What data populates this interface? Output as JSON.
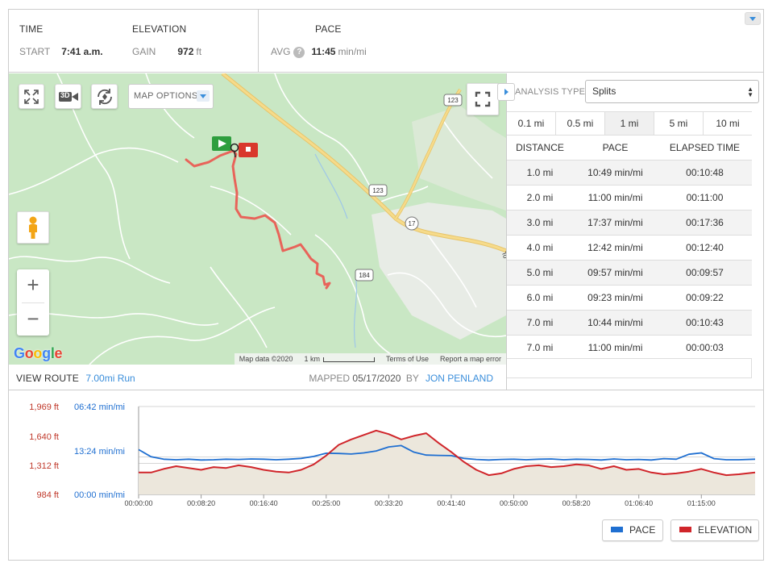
{
  "stats": {
    "time": {
      "heading": "TIME",
      "label": "START",
      "value": "7:41 a.m."
    },
    "elevation": {
      "heading": "ELEVATION",
      "label": "GAIN",
      "value": "972",
      "unit": "ft"
    },
    "pace": {
      "heading": "PACE",
      "label": "AVG",
      "help": "?",
      "value": "11:45",
      "unit": "min/mi"
    }
  },
  "map": {
    "buttons": {
      "expand": "expand-icon",
      "view_3d": "3D",
      "rotate": "rotate-icon",
      "fullscreen": "fullscreen-icon"
    },
    "options_label": "MAP OPTIONS",
    "zoom_in": "+",
    "zoom_out": "−",
    "google": "Google",
    "road_labels": [
      "123",
      "123",
      "17",
      "184",
      "To"
    ],
    "footer": {
      "data": "Map data ©2020",
      "scale": "1 km",
      "terms": "Terms of Use",
      "report": "Report a map error"
    }
  },
  "route": {
    "label": "VIEW ROUTE",
    "distance_link": "7.00mi Run",
    "mapped_label": "MAPPED",
    "mapped_date": "05/17/2020",
    "by_label": "BY",
    "author": "JON PENLAND"
  },
  "analysis": {
    "type_label": "ANALYSIS TYPE:",
    "type_value": "Splits",
    "tabs": [
      "0.1 mi",
      "0.5 mi",
      "1 mi",
      "5 mi",
      "10 mi"
    ],
    "active_tab": "1 mi",
    "columns": [
      "DISTANCE",
      "PACE",
      "ELAPSED TIME"
    ],
    "rows": [
      [
        "1.0 mi",
        "10:49 min/mi",
        "00:10:48"
      ],
      [
        "2.0 mi",
        "11:00 min/mi",
        "00:11:00"
      ],
      [
        "3.0 mi",
        "17:37 min/mi",
        "00:17:36"
      ],
      [
        "4.0 mi",
        "12:42 min/mi",
        "00:12:40"
      ],
      [
        "5.0 mi",
        "09:57 min/mi",
        "00:09:57"
      ],
      [
        "6.0 mi",
        "09:23 min/mi",
        "00:09:22"
      ],
      [
        "7.0 mi",
        "10:44 min/mi",
        "00:10:43"
      ],
      [
        "7.0 mi",
        "11:00 min/mi",
        "00:00:03"
      ]
    ]
  },
  "chart_data": {
    "type": "line",
    "elevation_ticks": [
      "1,969 ft",
      "1,640 ft",
      "1,312 ft",
      "984 ft"
    ],
    "pace_ticks": [
      "06:42 min/mi",
      "13:24 min/mi",
      "00:00 min/mi"
    ],
    "x_ticks": [
      "00:00:00",
      "00:08:20",
      "00:16:40",
      "00:25:00",
      "00:33:20",
      "00:41:40",
      "00:50:00",
      "00:58:20",
      "01:06:40",
      "01:15:00"
    ],
    "x_tick_seconds": [
      0,
      500,
      1000,
      1500,
      2000,
      2500,
      3000,
      3500,
      4000,
      4500
    ],
    "x_range_seconds": [
      0,
      4930
    ],
    "elevation_range_ft": [
      984,
      1969
    ],
    "series": [
      {
        "name": "PACE",
        "color": "#1f6fd1",
        "x_seconds": [
          0,
          100,
          200,
          300,
          400,
          500,
          600,
          700,
          800,
          900,
          1000,
          1100,
          1200,
          1300,
          1400,
          1500,
          1600,
          1700,
          1800,
          1900,
          2000,
          2100,
          2200,
          2300,
          2400,
          2500,
          2600,
          2700,
          2800,
          2900,
          3000,
          3100,
          3200,
          3300,
          3400,
          3500,
          3600,
          3700,
          3800,
          3900,
          4000,
          4100,
          4200,
          4300,
          4400,
          4500,
          4600,
          4700,
          4800,
          4930
        ],
        "values": [
          "16:30",
          "12:10",
          "10:40",
          "10:20",
          "10:40",
          "10:10",
          "10:20",
          "10:40",
          "10:30",
          "10:50",
          "10:40",
          "10:20",
          "10:40",
          "11:10",
          "12:20",
          "14:20",
          "14:10",
          "13:50",
          "14:30",
          "15:40",
          "18:10",
          "19:00",
          "15:00",
          "13:10",
          "13:00",
          "12:50",
          "11:10",
          "10:30",
          "10:10",
          "10:30",
          "10:40",
          "10:20",
          "10:40",
          "10:50",
          "10:20",
          "10:40",
          "10:30",
          "10:10",
          "10:50",
          "10:20",
          "10:30",
          "10:10",
          "11:00",
          "10:40",
          "13:40",
          "14:30",
          "11:00",
          "10:20",
          "10:20",
          "10:40"
        ]
      },
      {
        "name": "ELEVATION",
        "color": "#d0252a",
        "x_seconds": [
          0,
          100,
          200,
          300,
          400,
          500,
          600,
          700,
          800,
          900,
          1000,
          1100,
          1200,
          1300,
          1400,
          1500,
          1600,
          1700,
          1800,
          1900,
          2000,
          2100,
          2200,
          2300,
          2400,
          2500,
          2600,
          2700,
          2800,
          2900,
          3000,
          3100,
          3200,
          3300,
          3400,
          3500,
          3600,
          3700,
          3800,
          3900,
          4000,
          4100,
          4200,
          4300,
          4400,
          4500,
          4600,
          4700,
          4800,
          4930
        ],
        "values": [
          1230,
          1230,
          1270,
          1300,
          1280,
          1260,
          1290,
          1280,
          1310,
          1290,
          1260,
          1240,
          1230,
          1260,
          1320,
          1420,
          1540,
          1600,
          1650,
          1700,
          1660,
          1600,
          1640,
          1670,
          1560,
          1460,
          1350,
          1260,
          1200,
          1220,
          1270,
          1300,
          1310,
          1290,
          1300,
          1320,
          1310,
          1270,
          1300,
          1260,
          1270,
          1230,
          1210,
          1220,
          1240,
          1270,
          1230,
          1200,
          1210,
          1230
        ]
      }
    ]
  },
  "legend": [
    {
      "label": "PACE",
      "color": "#1f6fd1"
    },
    {
      "label": "ELEVATION",
      "color": "#d0252a"
    }
  ]
}
